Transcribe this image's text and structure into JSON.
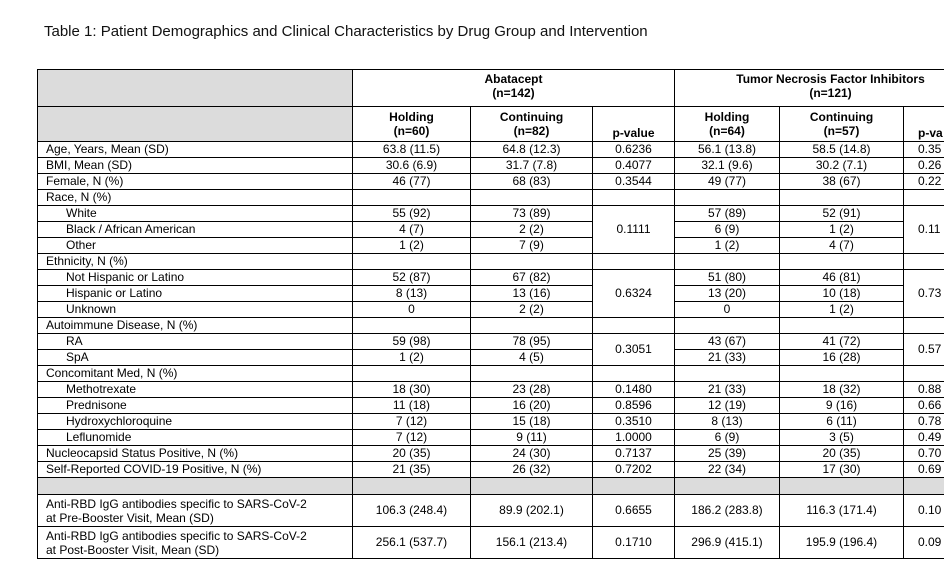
{
  "title": "Table 1: Patient Demographics and Clinical Characteristics by Drug Group and Intervention",
  "columns": {
    "groups": [
      {
        "name": "Abatacept",
        "n": "(n=142)"
      },
      {
        "name": "Tumor Necrosis Factor Inhibitors",
        "n": "(n=121)"
      }
    ],
    "sub": [
      [
        "Holding",
        "(n=60)"
      ],
      [
        "Continuing",
        "(n=82)"
      ],
      [
        "p-value"
      ],
      [
        "Holding",
        "(n=64)"
      ],
      [
        "Continuing",
        "(n=57)"
      ],
      [
        "p-va"
      ]
    ]
  },
  "rows": [
    {
      "label": "Age, Years, Mean (SD)",
      "cells": [
        "63.8 (11.5)",
        "64.8 (12.3)",
        "0.6236",
        "56.1 (13.8)",
        "58.5 (14.8)",
        "0.35"
      ]
    },
    {
      "label": "BMI, Mean (SD)",
      "cells": [
        "30.6 (6.9)",
        "31.7 (7.8)",
        "0.4077",
        "32.1 (9.6)",
        "30.2 (7.1)",
        "0.26"
      ]
    },
    {
      "label": "Female, N (%)",
      "cells": [
        "46 (77)",
        "68 (83)",
        "0.3544",
        "49 (77)",
        "38 (67)",
        "0.22"
      ]
    },
    {
      "label": "Race, N (%)",
      "p": [
        "0.1111",
        "0.11"
      ],
      "items": [
        {
          "label": "White",
          "cells": [
            "55 (92)",
            "73 (89)",
            "57 (89)",
            "52 (91)"
          ]
        },
        {
          "label": "Black / African American",
          "cells": [
            "4 (7)",
            "2 (2)",
            "6 (9)",
            "1 (2)"
          ]
        },
        {
          "label": "Other",
          "cells": [
            "1 (2)",
            "7 (9)",
            "1 (2)",
            "4 (7)"
          ]
        }
      ]
    },
    {
      "label": "Ethnicity, N (%)",
      "p": [
        "0.6324",
        "0.73"
      ],
      "items": [
        {
          "label": "Not Hispanic or Latino",
          "cells": [
            "52 (87)",
            "67 (82)",
            "51 (80)",
            "46 (81)"
          ]
        },
        {
          "label": "Hispanic or Latino",
          "cells": [
            "8 (13)",
            "13 (16)",
            "13 (20)",
            "10 (18)"
          ]
        },
        {
          "label": "Unknown",
          "cells": [
            "0",
            "2 (2)",
            "0",
            "1 (2)"
          ]
        }
      ]
    },
    {
      "label": "Autoimmune Disease, N (%)",
      "p": [
        "0.3051",
        "0.57"
      ],
      "items": [
        {
          "label": "RA",
          "cells": [
            "59 (98)",
            "78 (95)",
            "43 (67)",
            "41 (72)"
          ]
        },
        {
          "label": "SpA",
          "cells": [
            "1 (2)",
            "4 (5)",
            "21 (33)",
            "16 (28)"
          ]
        }
      ]
    },
    {
      "label": "Concomitant Med, N (%)",
      "items": [
        {
          "label": "Methotrexate",
          "cells": [
            "18 (30)",
            "23 (28)",
            "0.1480",
            "21 (33)",
            "18 (32)",
            "0.88"
          ]
        },
        {
          "label": "Prednisone",
          "cells": [
            "11 (18)",
            "16 (20)",
            "0.8596",
            "12 (19)",
            "9 (16)",
            "0.66"
          ]
        },
        {
          "label": "Hydroxychloroquine",
          "cells": [
            "7 (12)",
            "15 (18)",
            "0.3510",
            "8 (13)",
            "6 (11)",
            "0.78"
          ]
        },
        {
          "label": "Leflunomide",
          "cells": [
            "7 (12)",
            "9 (11)",
            "1.0000",
            "6 (9)",
            "3 (5)",
            "0.49"
          ]
        }
      ]
    },
    {
      "label": "Nucleocapsid Status Positive, N (%)",
      "cells": [
        "20 (35)",
        "24 (30)",
        "0.7137",
        "25 (39)",
        "20 (35)",
        "0.70"
      ]
    },
    {
      "label": "Self-Reported COVID-19 Positive, N (%)",
      "cells": [
        "21 (35)",
        "26 (32)",
        "0.7202",
        "22 (34)",
        "17 (30)",
        "0.69"
      ]
    }
  ],
  "antibody_rows": [
    {
      "lines": [
        "Anti-RBD IgG antibodies specific to SARS-CoV-2",
        "at Pre-Booster Visit, Mean (SD)"
      ],
      "cells": [
        "106.3 (248.4)",
        "89.9 (202.1)",
        "0.6655",
        "186.2 (283.8)",
        "116.3 (171.4)",
        "0.10"
      ]
    },
    {
      "lines": [
        "Anti-RBD IgG antibodies specific to SARS-CoV-2",
        "at Post-Booster Visit, Mean (SD)"
      ],
      "cells": [
        "256.1 (537.7)",
        "156.1 (213.4)",
        "0.1710",
        "296.9 (415.1)",
        "195.9 (196.4)",
        "0.09"
      ]
    }
  ]
}
